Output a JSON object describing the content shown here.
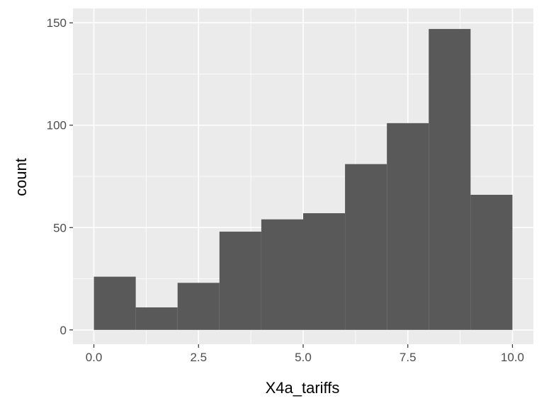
{
  "chart_data": {
    "type": "bar",
    "subtype": "histogram",
    "xlabel": "X4a_tariffs",
    "ylabel": "count",
    "xlim": [
      -0.5,
      10.5
    ],
    "ylim": [
      -7,
      157
    ],
    "x_ticks": [
      0.0,
      2.5,
      5.0,
      7.5,
      10.0
    ],
    "x_tick_labels": [
      "0.0",
      "2.5",
      "5.0",
      "7.5",
      "10.0"
    ],
    "y_ticks": [
      0,
      50,
      100,
      150
    ],
    "y_tick_labels": [
      "0",
      "50",
      "100",
      "150"
    ],
    "bins": [
      {
        "x0": 0,
        "x1": 1,
        "count": 26
      },
      {
        "x0": 1,
        "x1": 2,
        "count": 11
      },
      {
        "x0": 2,
        "x1": 3,
        "count": 23
      },
      {
        "x0": 3,
        "x1": 4,
        "count": 48
      },
      {
        "x0": 4,
        "x1": 5,
        "count": 54
      },
      {
        "x0": 5,
        "x1": 6,
        "count": 57
      },
      {
        "x0": 6,
        "x1": 7,
        "count": 81
      },
      {
        "x0": 7,
        "x1": 8,
        "count": 101
      },
      {
        "x0": 8,
        "x1": 9,
        "count": 147
      },
      {
        "x0": 9,
        "x1": 10,
        "count": 66
      }
    ],
    "grid": true,
    "colors": {
      "panel_background": "#ebebeb",
      "grid_major": "#ffffff",
      "bar_fill": "#595959",
      "tick_mark": "#333333"
    }
  }
}
